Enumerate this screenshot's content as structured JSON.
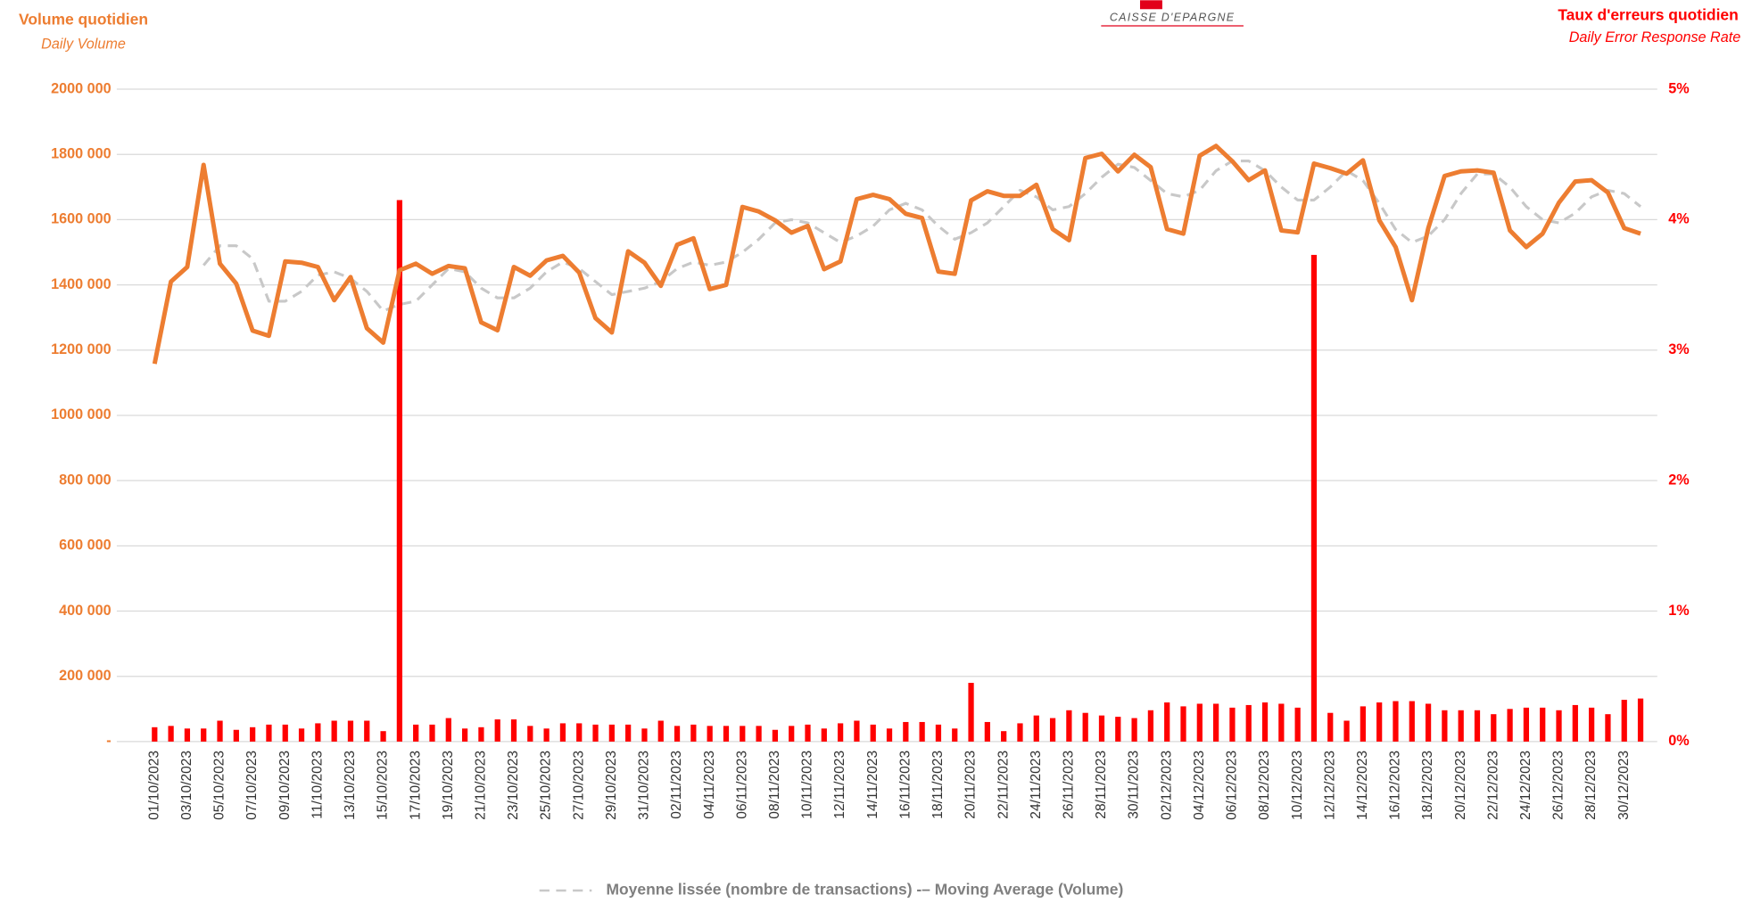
{
  "logo": "CAISSE D'EPARGNE",
  "chart_data": {
    "type": "combo",
    "ylabel": "Volume quotidien",
    "ylabel_sub": "Daily Volume",
    "y2label": "Taux d'erreurs quotidien",
    "y2label_sub": "Daily Error Response Rate",
    "categories": [
      "01/10/2023",
      null,
      "03/10/2023",
      null,
      "05/10/2023",
      null,
      "07/10/2023",
      null,
      "09/10/2023",
      null,
      "11/10/2023",
      null,
      "13/10/2023",
      null,
      "15/10/2023",
      null,
      "17/10/2023",
      null,
      "19/10/2023",
      null,
      "21/10/2023",
      null,
      "23/10/2023",
      null,
      "25/10/2023",
      null,
      "27/10/2023",
      null,
      "29/10/2023",
      null,
      "31/10/2023",
      null,
      "02/11/2023",
      null,
      "04/11/2023",
      null,
      "06/11/2023",
      null,
      "08/11/2023",
      null,
      "10/11/2023",
      null,
      "12/11/2023",
      null,
      "14/11/2023",
      null,
      "16/11/2023",
      null,
      "18/11/2023",
      null,
      "20/11/2023",
      null,
      "22/11/2023",
      null,
      "24/11/2023",
      null,
      "26/11/2023",
      null,
      "28/11/2023",
      null,
      "30/11/2023",
      null,
      "02/12/2023",
      null,
      "04/12/2023",
      null,
      "06/12/2023",
      null,
      "08/12/2023",
      null,
      "10/12/2023",
      null,
      "12/12/2023",
      null,
      "14/12/2023",
      null,
      "16/12/2023",
      null,
      "18/12/2023",
      null,
      "20/12/2023",
      null,
      "22/12/2023",
      null,
      "24/12/2023",
      null,
      "26/12/2023",
      null,
      "28/12/2023",
      null,
      "30/12/2023",
      null
    ],
    "series": [
      {
        "type": "bar",
        "axis": "y2",
        "color": "#ff0000",
        "values": [
          0.11,
          0.12,
          0.1,
          0.1,
          0.16,
          0.09,
          0.11,
          0.13,
          0.13,
          0.1,
          0.14,
          0.16,
          0.16,
          0.16,
          0.08,
          4.15,
          0.13,
          0.13,
          0.18,
          0.1,
          0.11,
          0.17,
          0.17,
          0.12,
          0.1,
          0.14,
          0.14,
          0.13,
          0.13,
          0.13,
          0.1,
          0.16,
          0.12,
          0.13,
          0.12,
          0.12,
          0.12,
          0.12,
          0.09,
          0.12,
          0.13,
          0.1,
          0.14,
          0.16,
          0.13,
          0.1,
          0.15,
          0.15,
          0.13,
          0.1,
          0.45,
          0.15,
          0.08,
          0.14,
          0.2,
          0.18,
          0.24,
          0.22,
          0.2,
          0.19,
          0.18,
          0.24,
          0.3,
          0.27,
          0.29,
          0.29,
          0.26,
          0.28,
          0.3,
          0.29,
          0.26,
          3.73,
          0.22,
          0.16,
          0.27,
          0.3,
          0.31,
          0.31,
          0.29,
          0.24,
          0.24,
          0.24,
          0.21,
          0.25,
          0.26,
          0.26,
          0.24,
          0.28,
          0.26,
          0.21,
          0.32,
          0.33
        ]
      },
      {
        "type": "line",
        "color": "#ed7d31",
        "values": [
          1158000,
          1410000,
          1455000,
          1768000,
          1465000,
          1404000,
          1260000,
          1244000,
          1472000,
          1468000,
          1455000,
          1353000,
          1424000,
          1267000,
          1223000,
          1445000,
          1465000,
          1434000,
          1458000,
          1451000,
          1285000,
          1261000,
          1455000,
          1428000,
          1475000,
          1489000,
          1438000,
          1298000,
          1254000,
          1503000,
          1468000,
          1397000,
          1523000,
          1543000,
          1387000,
          1400000,
          1639000,
          1625000,
          1598000,
          1560000,
          1581000,
          1448000,
          1472000,
          1663000,
          1676000,
          1663000,
          1618000,
          1605000,
          1441000,
          1434000,
          1659000,
          1687000,
          1673000,
          1673000,
          1707000,
          1571000,
          1537000,
          1789000,
          1802000,
          1748000,
          1799000,
          1761000,
          1571000,
          1557000,
          1796000,
          1826000,
          1779000,
          1721000,
          1751000,
          1567000,
          1561000,
          1772000,
          1758000,
          1741000,
          1782000,
          1598000,
          1516000,
          1353000,
          1574000,
          1734000,
          1748000,
          1751000,
          1744000,
          1567000,
          1516000,
          1557000,
          1652000,
          1717000,
          1721000,
          1683000,
          1574000,
          1557000
        ]
      },
      {
        "type": "line",
        "dashed": true,
        "color": "#c8c8c8",
        "name": "Moyenne lissée (nombre de transactions) -– Moving Average (Volume)",
        "values": [
          null,
          null,
          null,
          1460000,
          1520000,
          1520000,
          1480000,
          1350000,
          1350000,
          1380000,
          1430000,
          1440000,
          1420000,
          1380000,
          1320000,
          1340000,
          1350000,
          1400000,
          1450000,
          1440000,
          1390000,
          1360000,
          1360000,
          1390000,
          1440000,
          1470000,
          1450000,
          1410000,
          1370000,
          1380000,
          1390000,
          1410000,
          1450000,
          1470000,
          1460000,
          1470000,
          1500000,
          1540000,
          1590000,
          1600000,
          1590000,
          1560000,
          1530000,
          1550000,
          1580000,
          1630000,
          1650000,
          1630000,
          1580000,
          1540000,
          1560000,
          1590000,
          1640000,
          1690000,
          1670000,
          1630000,
          1640000,
          1680000,
          1730000,
          1770000,
          1760000,
          1720000,
          1680000,
          1670000,
          1690000,
          1750000,
          1780000,
          1780000,
          1750000,
          1700000,
          1660000,
          1660000,
          1700000,
          1750000,
          1720000,
          1650000,
          1570000,
          1530000,
          1550000,
          1600000,
          1680000,
          1740000,
          1740000,
          1700000,
          1640000,
          1600000,
          1590000,
          1620000,
          1670000,
          1690000,
          1680000,
          1640000
        ]
      }
    ],
    "ylim": [
      0,
      2000000
    ],
    "yticks": [
      {
        "value": 0,
        "label": "-"
      },
      {
        "value": 200000,
        "label": "200 000"
      },
      {
        "value": 400000,
        "label": "400 000"
      },
      {
        "value": 600000,
        "label": "600 000"
      },
      {
        "value": 800000,
        "label": "800 000"
      },
      {
        "value": 1000000,
        "label": "1000 000"
      },
      {
        "value": 1200000,
        "label": "1200 000"
      },
      {
        "value": 1400000,
        "label": "1400 000"
      },
      {
        "value": 1600000,
        "label": "1600 000"
      },
      {
        "value": 1800000,
        "label": "1800 000"
      },
      {
        "value": 2000000,
        "label": "2000 000"
      }
    ],
    "y2lim": [
      0,
      5
    ],
    "y2ticks": [
      {
        "value": 0,
        "label": "0%"
      },
      {
        "value": 1,
        "label": "1%"
      },
      {
        "value": 2,
        "label": "2%"
      },
      {
        "value": 3,
        "label": "3%"
      },
      {
        "value": 4,
        "label": "4%"
      },
      {
        "value": 5,
        "label": "5%"
      }
    ],
    "grid": true,
    "legend": "bottom"
  }
}
